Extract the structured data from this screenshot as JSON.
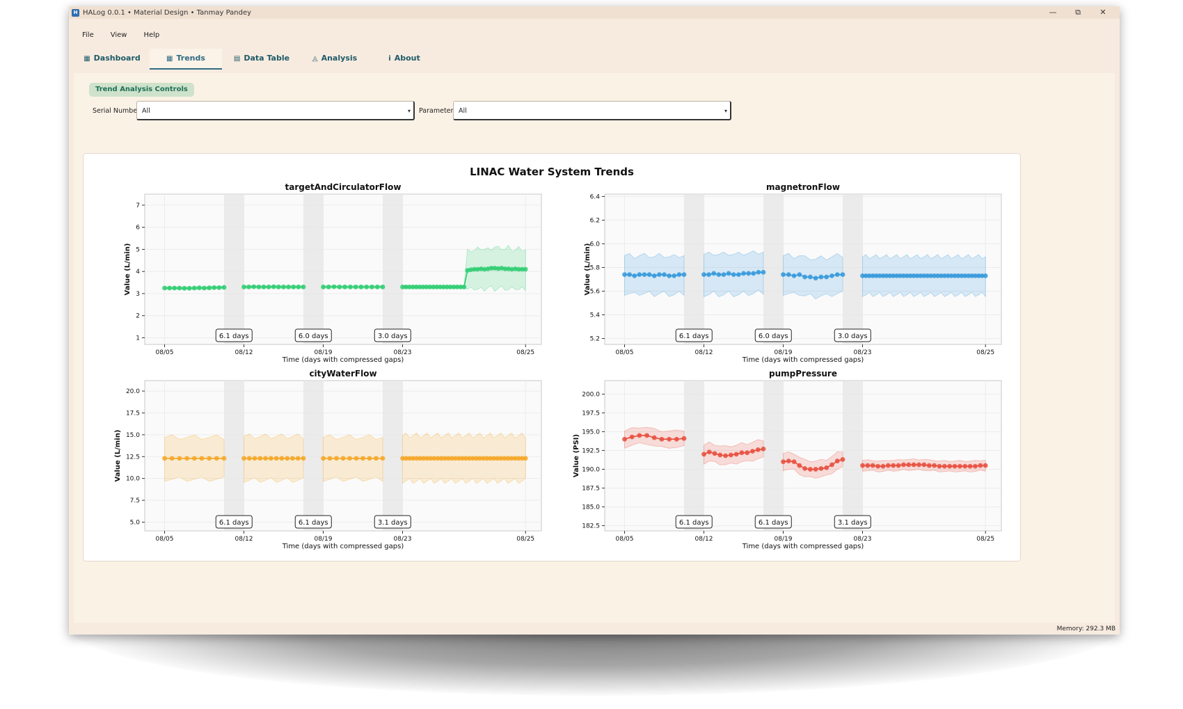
{
  "window": {
    "title": "HALog 0.0.1 • Material Design • Tanmay Pandey",
    "icon": "app-icon",
    "controls": [
      "—",
      "⧉",
      "✕"
    ]
  },
  "menu": [
    "File",
    "View",
    "Help"
  ],
  "tabs": [
    {
      "label": "Dashboard",
      "icon": "dashboard-icon",
      "glyph": "▦"
    },
    {
      "label": "Trends",
      "icon": "trends-icon",
      "glyph": "▦"
    },
    {
      "label": "Data Table",
      "icon": "table-icon",
      "glyph": "▤"
    },
    {
      "label": "Analysis",
      "icon": "analysis-icon",
      "glyph": "◬"
    },
    {
      "label": "About",
      "icon": "info-icon",
      "glyph": "i"
    }
  ],
  "active_tab": "Trends",
  "controls": {
    "group_title": "Trend Analysis Controls",
    "serial_label": "Serial Number:",
    "serial_value": "All",
    "parameter_label": "Parameter:",
    "parameter_value": "All"
  },
  "status": {
    "memory": "Memory: 292.3 MB"
  },
  "chart_data": {
    "suptitle": "LINAC Water System Trends",
    "xlabel": "Time (days with compressed gaps)",
    "x_ticks": [
      "08/05",
      "08/12",
      "08/19",
      "08/23",
      "08/25"
    ],
    "charts": [
      {
        "title": "targetAndCirculatorFlow",
        "ylabel": "Value (L/min)",
        "color": "#2ecc71",
        "ylim": [
          0.7,
          7.5
        ],
        "yticks": [
          1,
          2,
          3,
          4,
          5,
          6,
          7
        ],
        "ytick_labels": [
          "1",
          "2",
          "3",
          "4",
          "5",
          "6",
          "7"
        ],
        "gap_labels": [
          "6.1 days",
          "6.0 days",
          "3.0 days"
        ],
        "segments": [
          {
            "mean": [
              3.25,
              3.25,
              3.25,
              3.25,
              3.24,
              3.24,
              3.25,
              3.26,
              3.25,
              3.26,
              3.27,
              3.27,
              3.28
            ],
            "band": 0.06
          },
          {
            "mean": [
              3.3,
              3.3,
              3.31,
              3.3,
              3.3,
              3.3,
              3.31,
              3.3,
              3.3,
              3.3,
              3.3,
              3.3,
              3.3
            ],
            "band": 0.06
          },
          {
            "mean": [
              3.3,
              3.3,
              3.31,
              3.3,
              3.3,
              3.3,
              3.3,
              3.3,
              3.3,
              3.3,
              3.3,
              3.3
            ],
            "band": 0.06
          },
          {
            "mean": [
              3.3,
              3.3,
              3.3,
              3.3,
              3.3,
              3.3,
              3.3,
              3.3,
              3.3,
              3.3,
              3.3,
              3.3,
              3.3,
              3.3,
              3.3,
              3.3,
              3.3,
              3.3,
              3.3,
              4.05,
              4.08,
              4.1,
              4.1,
              4.12,
              4.1,
              4.12,
              4.15,
              4.15,
              4.13,
              4.15,
              4.12,
              4.12,
              4.1,
              4.12,
              4.1,
              4.1,
              4.1
            ],
            "band": [
              0.06,
              0.06,
              0.06,
              0.06,
              0.06,
              0.06,
              0.06,
              0.06,
              0.06,
              0.06,
              0.06,
              0.06,
              0.06,
              0.06,
              0.06,
              0.06,
              0.06,
              0.06,
              0.06,
              0.85,
              0.9,
              0.85,
              0.9,
              0.95,
              0.9,
              0.85,
              0.9,
              0.95,
              0.9,
              0.92,
              0.88,
              0.95,
              0.9,
              0.85,
              0.92,
              0.9,
              0.88
            ]
          }
        ]
      },
      {
        "title": "magnetronFlow",
        "ylabel": "Value (L/min)",
        "color": "#3498db",
        "ylim": [
          5.15,
          6.42
        ],
        "yticks": [
          5.2,
          5.4,
          5.6,
          5.8,
          6.0,
          6.2,
          6.4
        ],
        "ytick_labels": [
          "5.2",
          "5.4",
          "5.6",
          "5.8",
          "6.0",
          "6.2",
          "6.4"
        ],
        "gap_labels": [
          "6.1 days",
          "6.0 days",
          "3.0 days"
        ],
        "segments": [
          {
            "mean": [
              5.74,
              5.74,
              5.73,
              5.74,
              5.74,
              5.74,
              5.73,
              5.74,
              5.74,
              5.73,
              5.73,
              5.74,
              5.74
            ],
            "band": 0.16
          },
          {
            "mean": [
              5.74,
              5.74,
              5.75,
              5.74,
              5.74,
              5.75,
              5.74,
              5.74,
              5.75,
              5.75,
              5.75,
              5.76,
              5.76
            ],
            "band": 0.17
          },
          {
            "mean": [
              5.74,
              5.74,
              5.73,
              5.74,
              5.72,
              5.72,
              5.71,
              5.72,
              5.72,
              5.73,
              5.74,
              5.74
            ],
            "band": 0.16
          },
          {
            "mean": [
              5.73,
              5.73,
              5.73,
              5.73,
              5.73,
              5.73,
              5.73,
              5.73,
              5.73,
              5.73,
              5.73,
              5.73,
              5.73,
              5.73,
              5.73,
              5.73,
              5.73,
              5.73,
              5.73,
              5.73,
              5.73,
              5.73,
              5.73,
              5.73,
              5.73,
              5.73,
              5.73,
              5.73,
              5.73,
              5.73,
              5.73,
              5.73,
              5.73,
              5.73,
              5.73,
              5.73,
              5.73
            ],
            "band": 0.16
          }
        ]
      },
      {
        "title": "cityWaterFlow",
        "ylabel": "Value (L/min)",
        "color": "#f5a623",
        "ylim": [
          4,
          21.2
        ],
        "yticks": [
          5.0,
          7.5,
          10.0,
          12.5,
          15.0,
          17.5,
          20.0
        ],
        "ytick_labels": [
          "5.0",
          "7.5",
          "10.0",
          "12.5",
          "15.0",
          "17.5",
          "20.0"
        ],
        "gap_labels": [
          "6.1 days",
          "6.1 days",
          "3.1 days"
        ],
        "segments": [
          {
            "mean": [
              12.3,
              12.3,
              12.3,
              12.3,
              12.3,
              12.3,
              12.3,
              12.3,
              12.3
            ],
            "band": 2.4
          },
          {
            "mean": [
              12.3,
              12.3,
              12.3,
              12.3,
              12.3,
              12.3,
              12.3,
              12.3,
              12.3,
              12.3,
              12.3,
              12.3
            ],
            "band": 2.5
          },
          {
            "mean": [
              12.3,
              12.3,
              12.3,
              12.3,
              12.3,
              12.3,
              12.3,
              12.3,
              12.3,
              12.3
            ],
            "band": 2.4
          },
          {
            "mean": [
              12.3,
              12.3,
              12.3,
              12.3,
              12.3,
              12.3,
              12.3,
              12.3,
              12.3,
              12.3,
              12.3,
              12.3,
              12.3,
              12.3,
              12.3,
              12.3,
              12.3,
              12.3,
              12.3,
              12.3,
              12.3,
              12.3,
              12.3,
              12.3,
              12.3,
              12.3,
              12.3,
              12.3,
              12.3,
              12.3,
              12.3,
              12.3,
              12.3,
              12.3,
              12.3,
              12.3
            ],
            "band": 2.6
          }
        ]
      },
      {
        "title": "pumpPressure",
        "ylabel": "Value (PSI)",
        "color": "#e74c3c",
        "ylim": [
          181.8,
          201.8
        ],
        "yticks": [
          182.5,
          185.0,
          187.5,
          190.0,
          192.5,
          195.0,
          197.5,
          200.0
        ],
        "ytick_labels": [
          "182.5",
          "185.0",
          "187.5",
          "190.0",
          "192.5",
          "195.0",
          "197.5",
          "200.0"
        ],
        "gap_labels": [
          "6.1 days",
          "6.1 days",
          "3.1 days"
        ],
        "segments": [
          {
            "mean": [
              194.0,
              194.3,
              194.5,
              194.5,
              194.2,
              194.0,
              194.0,
              194.0,
              194.1
            ],
            "band": 1.1
          },
          {
            "mean": [
              192.0,
              192.3,
              192.1,
              191.9,
              191.8,
              191.9,
              192.0,
              192.2,
              192.2,
              192.4,
              192.6,
              192.7
            ],
            "band": 1.2
          },
          {
            "mean": [
              191.0,
              191.1,
              191.0,
              190.5,
              190.1,
              190.0,
              190.0,
              190.1,
              190.2,
              190.6,
              191.1,
              191.3
            ],
            "band": 1.1
          },
          {
            "mean": [
              190.5,
              190.5,
              190.5,
              190.4,
              190.4,
              190.5,
              190.5,
              190.5,
              190.6,
              190.6,
              190.6,
              190.6,
              190.6,
              190.5,
              190.5,
              190.4,
              190.4,
              190.4,
              190.4,
              190.4,
              190.4,
              190.4,
              190.4,
              190.5,
              190.5
            ],
            "band": 0.7
          }
        ]
      }
    ]
  }
}
